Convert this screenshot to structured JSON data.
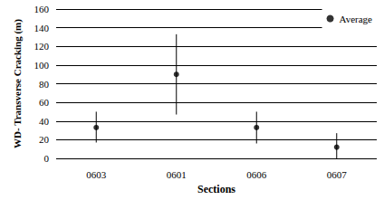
{
  "chart_data": {
    "type": "scatter",
    "x_label": "Sections",
    "y_label": "WD- Transverse Cracking (m)",
    "categories": [
      "0603",
      "0601",
      "0606",
      "0607"
    ],
    "series": [
      {
        "name": "Average",
        "color": "#000000",
        "marker": "circle",
        "values": [
          33,
          90,
          33,
          12
        ],
        "error_low": [
          17,
          47,
          16,
          0
        ],
        "error_high": [
          50,
          133,
          50,
          27
        ]
      }
    ],
    "ylim": [
      0,
      160
    ],
    "yticks": [
      0,
      20,
      40,
      60,
      80,
      100,
      120,
      140,
      160
    ],
    "grid": true,
    "legend": "upper right"
  }
}
